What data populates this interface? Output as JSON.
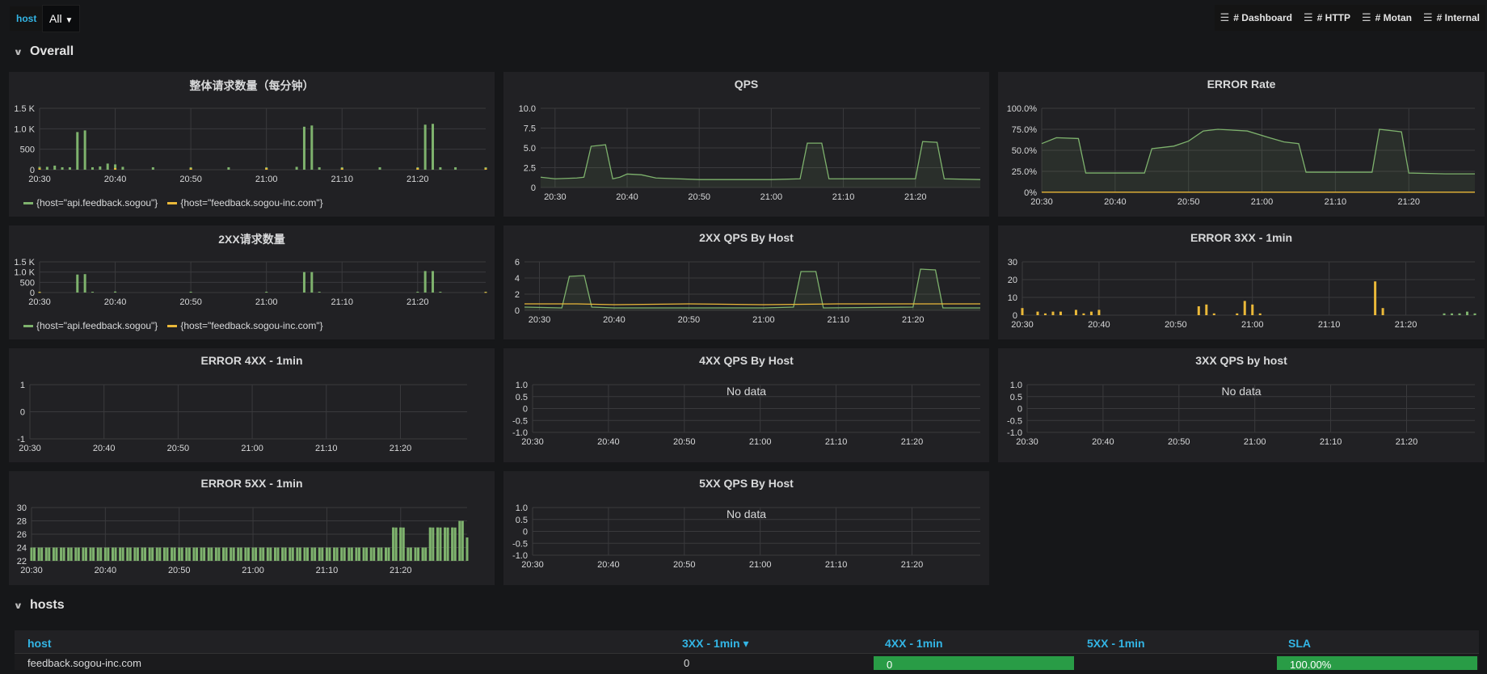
{
  "variables": {
    "host_label": "host",
    "host_value": "All"
  },
  "links": [
    "# Dashboard",
    "# HTTP",
    "# Motan",
    "# Internal"
  ],
  "rows": {
    "overall": "Overall",
    "hosts": "hosts"
  },
  "no_data": "No data",
  "legend": {
    "api": "{host=\"api.feedback.sogou\"}",
    "inc": "{host=\"feedback.sogou-inc.com\"}"
  },
  "colors": {
    "green": "#7eb26d",
    "yellow": "#eab839",
    "table_green": "#299c46",
    "link_blue": "#33b5e5"
  },
  "panels": {
    "p1": {
      "title": "整体请求数量（每分钟）"
    },
    "p2": {
      "title": "QPS"
    },
    "p3": {
      "title": "ERROR Rate"
    },
    "p4": {
      "title": "2XX请求数量"
    },
    "p5": {
      "title": "2XX QPS By Host"
    },
    "p6": {
      "title": "ERROR 3XX - 1min"
    },
    "p7": {
      "title": "ERROR 4XX - 1min"
    },
    "p8": {
      "title": "4XX QPS By Host"
    },
    "p9": {
      "title": "3XX QPS by host"
    },
    "p10": {
      "title": "ERROR 5XX - 1min"
    },
    "p11": {
      "title": "5XX QPS By Host"
    }
  },
  "table": {
    "headers": [
      "host",
      "3XX - 1min",
      "4XX - 1min",
      "5XX - 1min",
      "SLA"
    ],
    "sort_indicator": "▾",
    "row": [
      "feedback.sogou-inc.com",
      "0",
      "0",
      "",
      "100.00%"
    ]
  },
  "chart_data": [
    {
      "id": "p1",
      "type": "bar",
      "title": "整体请求数量（每分钟）",
      "x_range": [
        "20:30",
        "21:29"
      ],
      "x_ticks": [
        "20:30",
        "20:40",
        "20:50",
        "21:00",
        "21:10",
        "21:20"
      ],
      "y_ticks": [
        "0",
        "500",
        "1.0 K",
        "1.5 K"
      ],
      "ylim": [
        0,
        1500
      ],
      "series": [
        {
          "name": "{host=\"api.feedback.sogou\"}",
          "points": [
            [
              "20:30",
              70
            ],
            [
              "20:31",
              70
            ],
            [
              "20:32",
              100
            ],
            [
              "20:33",
              60
            ],
            [
              "20:34",
              60
            ],
            [
              "20:35",
              920
            ],
            [
              "20:36",
              960
            ],
            [
              "20:37",
              60
            ],
            [
              "20:38",
              80
            ],
            [
              "20:39",
              150
            ],
            [
              "20:40",
              130
            ],
            [
              "20:41",
              70
            ],
            [
              "20:45",
              60
            ],
            [
              "20:50",
              60
            ],
            [
              "20:55",
              60
            ],
            [
              "21:00",
              60
            ],
            [
              "21:04",
              70
            ],
            [
              "21:05",
              1050
            ],
            [
              "21:06",
              1080
            ],
            [
              "21:07",
              60
            ],
            [
              "21:10",
              60
            ],
            [
              "21:15",
              60
            ],
            [
              "21:20",
              60
            ],
            [
              "21:21",
              1100
            ],
            [
              "21:22",
              1120
            ],
            [
              "21:23",
              60
            ],
            [
              "21:25",
              60
            ],
            [
              "21:29",
              60
            ]
          ]
        },
        {
          "name": "{host=\"feedback.sogou-inc.com\"}",
          "points": [
            [
              "20:30",
              35
            ],
            [
              "20:40",
              40
            ],
            [
              "20:50",
              35
            ],
            [
              "21:00",
              40
            ],
            [
              "21:10",
              35
            ],
            [
              "21:20",
              40
            ],
            [
              "21:29",
              35
            ]
          ]
        }
      ]
    },
    {
      "id": "p2",
      "type": "line",
      "title": "QPS",
      "x_range": [
        "20:28",
        "21:29"
      ],
      "x_ticks": [
        "20:30",
        "20:40",
        "20:50",
        "21:00",
        "21:10",
        "21:20"
      ],
      "y_ticks": [
        "0",
        "2.5",
        "5.0",
        "7.5",
        "10.0"
      ],
      "ylim": [
        0,
        10
      ],
      "series": [
        {
          "points": [
            [
              "20:28",
              1.3
            ],
            [
              "20:30",
              1.1
            ],
            [
              "20:33",
              1.2
            ],
            [
              "20:34",
              1.3
            ],
            [
              "20:35",
              5.2
            ],
            [
              "20:37",
              5.4
            ],
            [
              "20:38",
              1.1
            ],
            [
              "20:39",
              1.3
            ],
            [
              "20:40",
              1.7
            ],
            [
              "20:42",
              1.6
            ],
            [
              "20:44",
              1.2
            ],
            [
              "20:50",
              1.0
            ],
            [
              "21:00",
              1.0
            ],
            [
              "21:04",
              1.1
            ],
            [
              "21:05",
              5.6
            ],
            [
              "21:07",
              5.6
            ],
            [
              "21:08",
              1.1
            ],
            [
              "21:15",
              1.1
            ],
            [
              "21:20",
              1.1
            ],
            [
              "21:21",
              5.8
            ],
            [
              "21:23",
              5.7
            ],
            [
              "21:24",
              1.1
            ],
            [
              "21:29",
              1.0
            ]
          ]
        }
      ]
    },
    {
      "id": "p3",
      "type": "area",
      "title": "ERROR Rate",
      "x_range": [
        "20:30",
        "21:29"
      ],
      "x_ticks": [
        "20:30",
        "20:40",
        "20:50",
        "21:00",
        "21:10",
        "21:20"
      ],
      "y_ticks": [
        "0%",
        "25.0%",
        "50.0%",
        "75.0%",
        "100.0%"
      ],
      "ylim": [
        0,
        100
      ],
      "series": [
        {
          "points": [
            [
              "20:30",
              58
            ],
            [
              "20:32",
              65
            ],
            [
              "20:35",
              64
            ],
            [
              "20:36",
              23
            ],
            [
              "20:40",
              23
            ],
            [
              "20:44",
              23
            ],
            [
              "20:45",
              52
            ],
            [
              "20:48",
              55
            ],
            [
              "20:50",
              61
            ],
            [
              "20:52",
              73
            ],
            [
              "20:54",
              75
            ],
            [
              "20:58",
              73
            ],
            [
              "21:01",
              65
            ],
            [
              "21:03",
              60
            ],
            [
              "21:05",
              58
            ],
            [
              "21:06",
              24
            ],
            [
              "21:10",
              24
            ],
            [
              "21:15",
              24
            ],
            [
              "21:16",
              75
            ],
            [
              "21:19",
              72
            ],
            [
              "21:20",
              23
            ],
            [
              "21:25",
              22
            ],
            [
              "21:29",
              22
            ]
          ]
        },
        {
          "points": [
            [
              "20:30",
              0.2
            ],
            [
              "21:29",
              0.2
            ]
          ]
        }
      ]
    },
    {
      "id": "p4",
      "type": "bar",
      "title": "2XX请求数量",
      "x_range": [
        "20:30",
        "21:29"
      ],
      "x_ticks": [
        "20:30",
        "20:40",
        "20:50",
        "21:00",
        "21:10",
        "21:20"
      ],
      "y_ticks": [
        "0",
        "500",
        "1.0 K",
        "1.5 K"
      ],
      "ylim": [
        0,
        1500
      ],
      "series": [
        {
          "name": "{host=\"api.feedback.sogou\"}",
          "points": [
            [
              "20:30",
              40
            ],
            [
              "20:35",
              880
            ],
            [
              "20:36",
              900
            ],
            [
              "20:37",
              40
            ],
            [
              "20:40",
              50
            ],
            [
              "20:50",
              40
            ],
            [
              "21:00",
              40
            ],
            [
              "21:05",
              1000
            ],
            [
              "21:06",
              1000
            ],
            [
              "21:07",
              40
            ],
            [
              "21:20",
              40
            ],
            [
              "21:21",
              1050
            ],
            [
              "21:22",
              1050
            ],
            [
              "21:23",
              40
            ],
            [
              "21:29",
              40
            ]
          ]
        },
        {
          "name": "{host=\"feedback.sogou-inc.com\"}",
          "points": [
            [
              "20:30",
              25
            ],
            [
              "21:29",
              25
            ]
          ]
        }
      ]
    },
    {
      "id": "p5",
      "type": "line",
      "title": "2XX QPS By Host",
      "x_range": [
        "20:28",
        "21:29"
      ],
      "x_ticks": [
        "20:30",
        "20:40",
        "20:50",
        "21:00",
        "21:10",
        "21:20"
      ],
      "y_ticks": [
        "0",
        "2",
        "4",
        "6"
      ],
      "ylim": [
        0,
        6
      ],
      "series": [
        {
          "points": [
            [
              "20:28",
              0.4
            ],
            [
              "20:33",
              0.3
            ],
            [
              "20:34",
              4.2
            ],
            [
              "20:36",
              4.3
            ],
            [
              "20:37",
              0.4
            ],
            [
              "20:40",
              0.3
            ],
            [
              "20:50",
              0.3
            ],
            [
              "21:00",
              0.3
            ],
            [
              "21:04",
              0.4
            ],
            [
              "21:05",
              4.8
            ],
            [
              "21:07",
              4.8
            ],
            [
              "21:08",
              0.3
            ],
            [
              "21:20",
              0.4
            ],
            [
              "21:21",
              5.1
            ],
            [
              "21:23",
              5.0
            ],
            [
              "21:24",
              0.3
            ],
            [
              "21:29",
              0.3
            ]
          ]
        },
        {
          "points": [
            [
              "20:28",
              0.8
            ],
            [
              "20:35",
              0.8
            ],
            [
              "20:40",
              0.7
            ],
            [
              "20:50",
              0.8
            ],
            [
              "21:00",
              0.7
            ],
            [
              "21:10",
              0.8
            ],
            [
              "21:20",
              0.8
            ],
            [
              "21:29",
              0.8
            ]
          ]
        }
      ]
    },
    {
      "id": "p6",
      "type": "bar",
      "title": "ERROR 3XX - 1min",
      "x_range": [
        "20:30",
        "21:29"
      ],
      "x_ticks": [
        "20:30",
        "20:40",
        "20:50",
        "21:00",
        "21:10",
        "21:20"
      ],
      "y_ticks": [
        "0",
        "10",
        "20",
        "30"
      ],
      "ylim": [
        0,
        30
      ],
      "series": [
        {
          "points": [
            [
              "20:30",
              4
            ],
            [
              "20:32",
              2
            ],
            [
              "20:33",
              1
            ],
            [
              "20:34",
              2
            ],
            [
              "20:35",
              2
            ],
            [
              "20:37",
              3
            ],
            [
              "20:38",
              1
            ],
            [
              "20:39",
              2
            ],
            [
              "20:40",
              3
            ],
            [
              "20:53",
              5
            ],
            [
              "20:54",
              6
            ],
            [
              "20:55",
              1
            ],
            [
              "20:58",
              1
            ],
            [
              "20:59",
              8
            ],
            [
              "21:00",
              6
            ],
            [
              "21:01",
              1
            ],
            [
              "21:16",
              19
            ],
            [
              "21:17",
              4
            ]
          ]
        },
        {
          "points": [
            [
              "21:25",
              1
            ],
            [
              "21:26",
              1
            ],
            [
              "21:27",
              1
            ],
            [
              "21:28",
              2
            ],
            [
              "21:29",
              1
            ]
          ]
        }
      ]
    },
    {
      "id": "p7",
      "type": "line",
      "title": "ERROR 4XX - 1min",
      "x_range": [
        "20:30",
        "21:29"
      ],
      "x_ticks": [
        "20:30",
        "20:40",
        "20:50",
        "21:00",
        "21:10",
        "21:20"
      ],
      "y_ticks": [
        "-1",
        "0",
        "1"
      ],
      "ylim": [
        -1,
        1
      ],
      "series": []
    },
    {
      "id": "p8",
      "type": "line",
      "title": "4XX QPS By Host",
      "x_range": [
        "20:30",
        "21:29"
      ],
      "x_ticks": [
        "20:30",
        "20:40",
        "20:50",
        "21:00",
        "21:10",
        "21:20"
      ],
      "y_ticks": [
        "-1.0",
        "-0.5",
        "0",
        "0.5",
        "1.0"
      ],
      "ylim": [
        -1,
        1
      ],
      "series": []
    },
    {
      "id": "p9",
      "type": "line",
      "title": "3XX QPS by host",
      "x_range": [
        "20:30",
        "21:29"
      ],
      "x_ticks": [
        "20:30",
        "20:40",
        "20:50",
        "21:00",
        "21:10",
        "21:20"
      ],
      "y_ticks": [
        "-1.0",
        "-0.5",
        "0",
        "0.5",
        "1.0"
      ],
      "ylim": [
        -1,
        1
      ],
      "series": []
    },
    {
      "id": "p10",
      "type": "bar",
      "title": "ERROR 5XX - 1min",
      "x_range": [
        "20:30",
        "21:29"
      ],
      "x_ticks": [
        "20:30",
        "20:40",
        "20:50",
        "21:00",
        "21:10",
        "21:20"
      ],
      "y_ticks": [
        "22",
        "24",
        "26",
        "28",
        "30"
      ],
      "ylim": [
        22,
        30
      ],
      "series": [
        {
          "points": [
            [
              "20:30",
              24
            ],
            [
              "21:18",
              24
            ],
            [
              "21:19",
              27
            ],
            [
              "21:20",
              27
            ],
            [
              "21:21",
              24
            ],
            [
              "21:23",
              24
            ],
            [
              "21:24",
              27
            ],
            [
              "21:25",
              27
            ],
            [
              "21:26",
              27
            ],
            [
              "21:27",
              27
            ],
            [
              "21:28",
              28
            ],
            [
              "21:29",
              25.5
            ]
          ]
        }
      ]
    },
    {
      "id": "p11",
      "type": "line",
      "title": "5XX QPS By Host",
      "x_range": [
        "20:30",
        "21:29"
      ],
      "x_ticks": [
        "20:30",
        "20:40",
        "20:50",
        "21:00",
        "21:10",
        "21:20"
      ],
      "y_ticks": [
        "-1.0",
        "-0.5",
        "0",
        "0.5",
        "1.0"
      ],
      "ylim": [
        -1,
        1
      ],
      "series": []
    }
  ]
}
